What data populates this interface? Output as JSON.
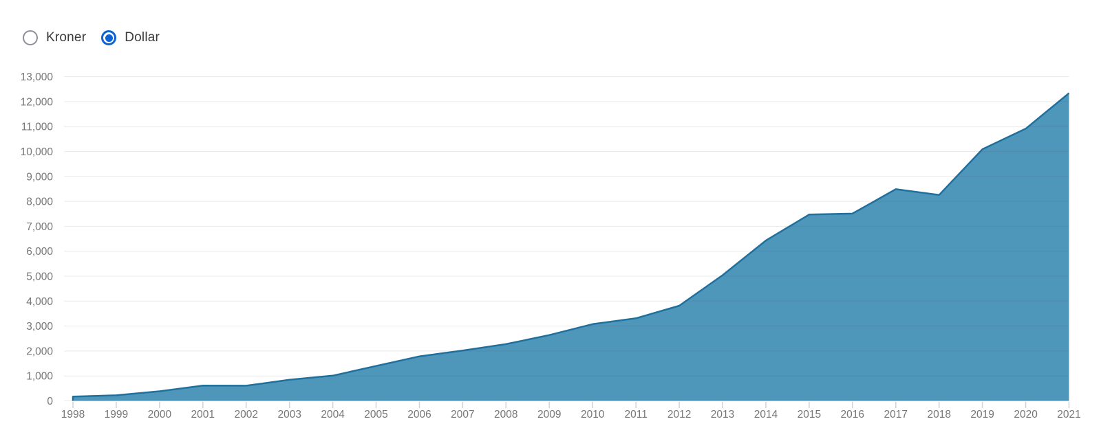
{
  "controls": {
    "options": [
      {
        "label": "Kroner",
        "selected": false
      },
      {
        "label": "Dollar",
        "selected": true
      }
    ]
  },
  "colors": {
    "accent_blue": "#0e63d4",
    "radio_inactive_ring": "#8f8f9c",
    "radio_label_text": "#3a3a3a",
    "area_fill": "#4f96bb",
    "area_line": "#20709d",
    "axis_text": "#767676",
    "gridline": "rgba(70,70,70,0.12)",
    "axis_tick": "#ccd3dc"
  },
  "chart_data": {
    "type": "area",
    "title": "",
    "xlabel": "",
    "ylabel": "",
    "x": [
      1998,
      1999,
      2000,
      2001,
      2002,
      2003,
      2004,
      2005,
      2006,
      2007,
      2008,
      2009,
      2010,
      2011,
      2012,
      2013,
      2014,
      2015,
      2016,
      2017,
      2018,
      2019,
      2020,
      2021
    ],
    "series": [
      {
        "name": "value",
        "values": [
          172,
          222,
          386,
          614,
          609,
          845,
          1012,
          1399,
          1784,
          2019,
          2275,
          2640,
          3077,
          3312,
          3816,
          5038,
          6431,
          7471,
          7510,
          8488,
          8256,
          10088,
          10914,
          12340
        ]
      }
    ],
    "ylim": [
      0,
      13000
    ],
    "ytick_step": 1000,
    "grid": "horizontal",
    "legend": "none"
  }
}
